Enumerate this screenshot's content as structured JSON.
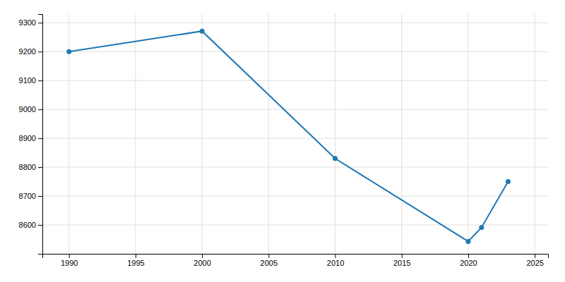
{
  "chart_data": {
    "type": "line",
    "x": [
      1990,
      2000,
      2010,
      2020,
      2021,
      2023
    ],
    "values": [
      9200,
      9271,
      8830,
      8543,
      8591,
      8750
    ],
    "xlim": [
      1988,
      2026
    ],
    "ylim": [
      8500,
      9330
    ],
    "xticks": [
      1990,
      1995,
      2000,
      2005,
      2010,
      2015,
      2020,
      2025
    ],
    "yticks": [
      8600,
      8700,
      8800,
      8900,
      9000,
      9100,
      9200,
      9300
    ],
    "grid": true,
    "marker": "circle"
  }
}
